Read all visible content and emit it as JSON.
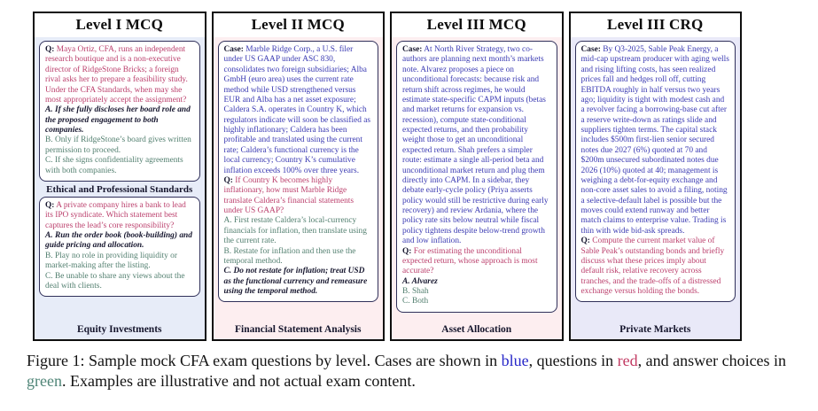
{
  "colors": {
    "case_blue": "#3a3ab2",
    "question_red": "#bb3f6c",
    "choice_green": "#527f6f",
    "correct_dark": "#17172f",
    "panel1_bg": "#e7ecf8",
    "panel2_bg": "#fdeef0",
    "panel3_bg": "#fdeef0",
    "panel4_bg": "#e9e9f8"
  },
  "panels": {
    "p1": {
      "title": "Level I MCQ",
      "q1": {
        "prefix": "Q:",
        "text": "Maya Ortiz, CFA, runs an independent research boutique and is a non-executive director of RidgeStone Bricks; a foreign rival asks her to prepare a feasibility study. Under the CFA Standards, when may she most appropriately accept the assignment?",
        "a": "A. If she fully discloses her board role and the proposed engagement to both companies.",
        "b": "B. Only if RidgeStone’s board gives written permission to proceed.",
        "c": "C. If she signs confidentiality agreements with both companies."
      },
      "divider_label": "Ethical and Professional Standards",
      "q2": {
        "prefix": "Q:",
        "text": "A private company hires a bank to lead its IPO syndicate. Which statement best captures the lead’s core responsibility?",
        "a": "A. Run the order book (book-building) and guide pricing and allocation.",
        "b": "B. Play no role in providing liquidity or market-making after the listing.",
        "c": "C. Be unable to share any views about the deal with clients."
      },
      "footer": "Equity Investments"
    },
    "p2": {
      "title": "Level II MCQ",
      "case_prefix": "Case:",
      "case_text": "Marble Ridge Corp., a U.S. filer under US GAAP under ASC 830, consolidates two foreign subsidiaries; Alba GmbH (euro area) uses the current rate method while USD strengthened versus EUR and Alba has a net asset exposure; Caldera S.A. operates in Country K, which regulators indicate will soon be classified as highly inflationary; Caldera has been profitable and translated using the current rate; Caldera’s functional currency is the local currency; Country K’s cumulative inflation exceeds 100% over three years.",
      "q_prefix": "Q:",
      "q_text": "If Country K becomes highly inflationary, how must Marble Ridge translate Caldera’s financial statements under US GAAP?",
      "a": "A. First restate Caldera’s local-currency financials for inflation, then translate using the current rate.",
      "b": "B. Restate for inflation and then use the temporal method.",
      "c": "C. Do not restate for inflation; treat USD as the functional currency and remeasure using the temporal method.",
      "footer": "Financial Statement Analysis"
    },
    "p3": {
      "title": "Level III MCQ",
      "case_prefix": "Case:",
      "case_text": "At North River Strategy, two co-authors are planning next month’s markets note. Alvarez proposes a piece on unconditional forecasts: because risk and return shift across regimes, he would estimate state-specific CAPM inputs (betas and market returns for expansion vs. recession), compute state-conditional expected returns, and then probability weight those to get an unconditional expected return. Shah prefers a simpler route: estimate a single all-period beta and unconditional market return and plug them directly into CAPM. In a sidebar, they debate early-cycle policy (Priya asserts policy would still be restrictive during early recovery) and review Ardania, where the policy rate sits below neutral while fiscal policy tightens despite below-trend growth and low inflation.",
      "q_prefix": "Q:",
      "q_text": "For estimating the unconditional expected return, whose approach is most accurate?",
      "a": "A. Alvarez",
      "b": "B. Shah",
      "c": "C. Both",
      "footer": "Asset Allocation"
    },
    "p4": {
      "title": "Level III CRQ",
      "case_prefix": "Case:",
      "case_text": "By Q3-2025, Sable Peak Energy, a mid-cap upstream producer with aging wells and rising lifting costs, has seen realized prices fall and hedges roll off, cutting EBITDA roughly in half versus two years ago; liquidity is tight with modest cash and a revolver facing a borrowing-base cut after a reserve write-down as ratings slide and suppliers tighten terms. The capital stack includes $500m first-lien senior secured notes due 2027 (6%) quoted at 70 and $200m unsecured subordinated notes due 2026 (10%) quoted at 40; management is weighing a debt-for-equity exchange and non-core asset sales to avoid a filing, noting a selective-default label is possible but the moves could extend runway and better match claims to enterprise value. Trading is thin with wide bid-ask spreads.",
      "q_prefix": "Q:",
      "q_text": "Compute the current market value of Sable Peak’s outstanding bonds and briefly discuss what these prices imply about default risk, relative recovery across tranches, and the trade-offs of a distressed exchange versus holding the bonds.",
      "footer": "Private Markets"
    }
  },
  "caption": {
    "part1": "Figure 1: Sample mock CFA exam questions by level. Cases are shown in ",
    "blue_word": "blue",
    "part2": ", questions in ",
    "red_word": "red",
    "part3": ", and answer choices in ",
    "green_word": "green",
    "part4": ". Examples are illustrative and not actual exam content."
  }
}
